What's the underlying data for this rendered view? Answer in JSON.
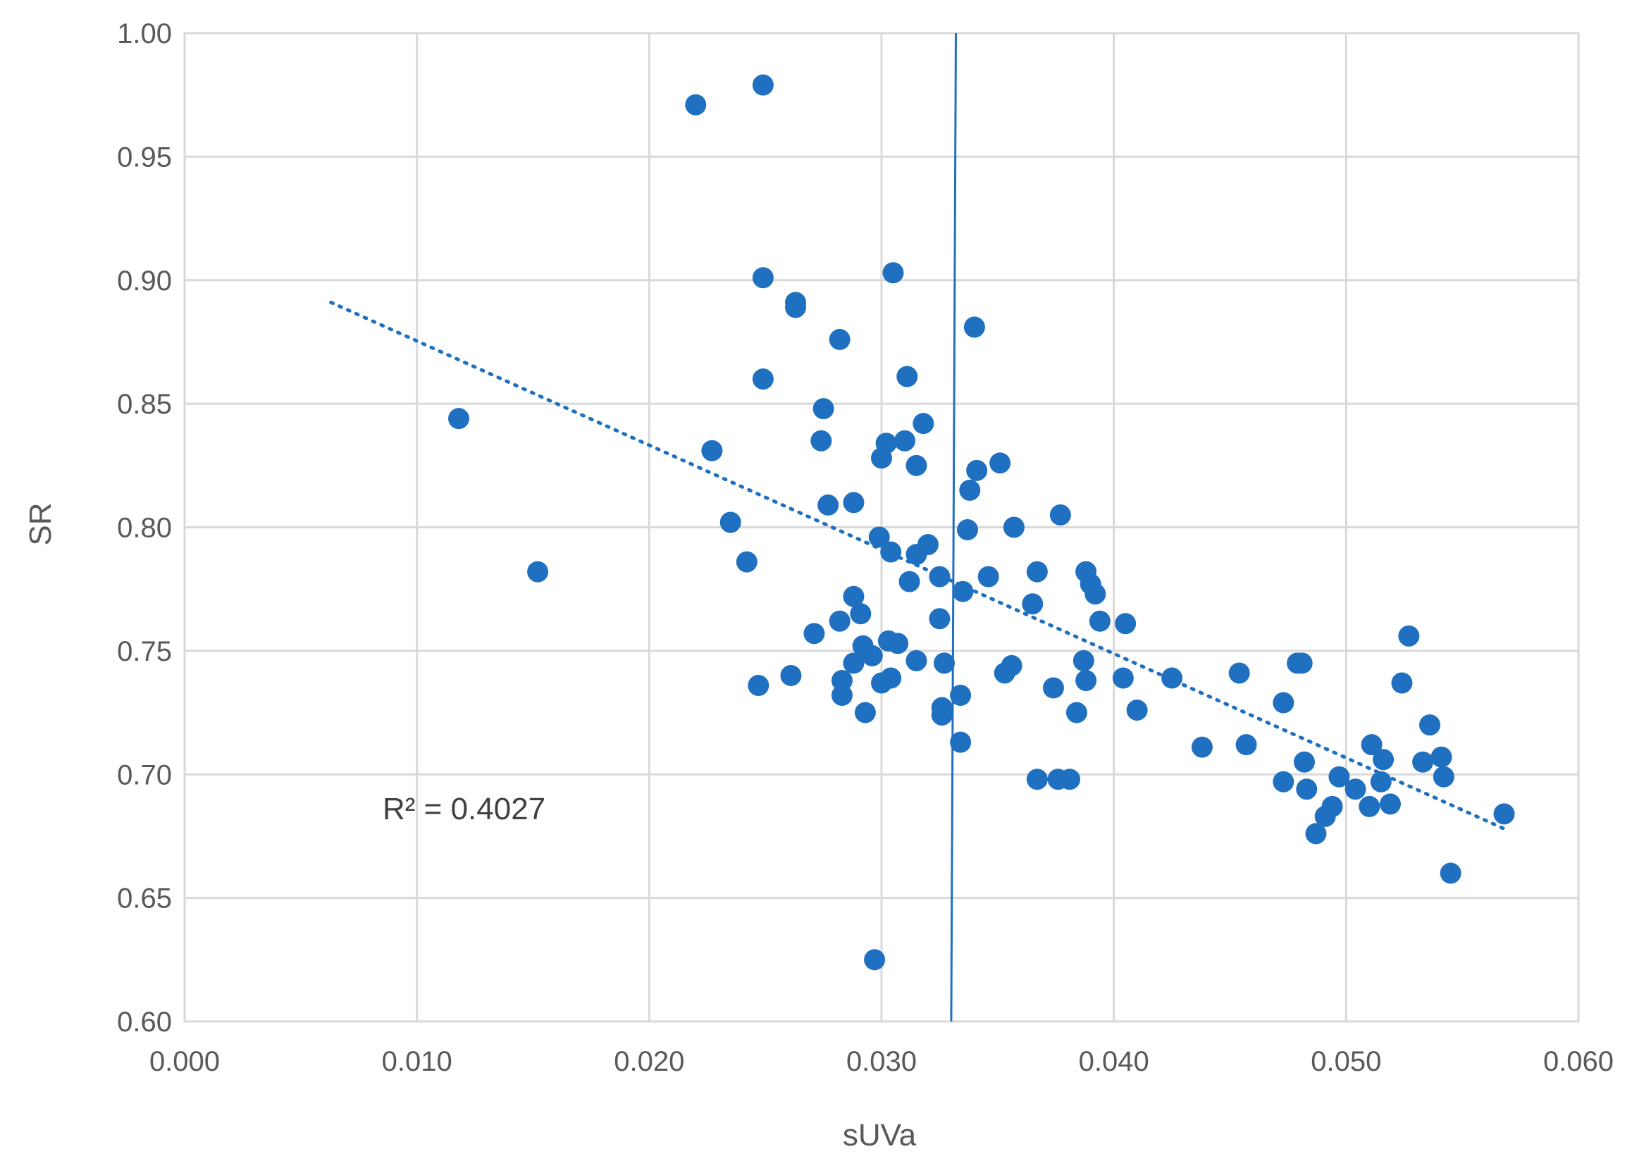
{
  "chart_data": {
    "type": "scatter",
    "xlabel": "sUVa",
    "ylabel": "SR",
    "xlim": [
      0.0,
      0.06
    ],
    "ylim": [
      0.6,
      1.0
    ],
    "x_ticks": [
      "0.000",
      "0.010",
      "0.020",
      "0.030",
      "0.040",
      "0.050",
      "0.060"
    ],
    "y_ticks": [
      "0.60",
      "0.65",
      "0.70",
      "0.75",
      "0.80",
      "0.85",
      "0.90",
      "0.95",
      "1.00"
    ],
    "grid": true,
    "marker_color": "#1f70c1",
    "annotation": "R² = 0.4027",
    "trendline": {
      "style": "dotted",
      "x": [
        0.0063,
        0.0568
      ],
      "y": [
        0.891,
        0.678
      ]
    },
    "reference_line": {
      "x_top": 0.0332,
      "x_bottom": 0.033
    },
    "points": [
      [
        0.0118,
        0.844
      ],
      [
        0.0152,
        0.782
      ],
      [
        0.022,
        0.971
      ],
      [
        0.0249,
        0.979
      ],
      [
        0.0227,
        0.831
      ],
      [
        0.0235,
        0.802
      ],
      [
        0.0242,
        0.786
      ],
      [
        0.0247,
        0.736
      ],
      [
        0.0249,
        0.901
      ],
      [
        0.0249,
        0.86
      ],
      [
        0.0263,
        0.891
      ],
      [
        0.0263,
        0.889
      ],
      [
        0.0261,
        0.74
      ],
      [
        0.0271,
        0.757
      ],
      [
        0.0274,
        0.835
      ],
      [
        0.0275,
        0.848
      ],
      [
        0.0277,
        0.809
      ],
      [
        0.0282,
        0.876
      ],
      [
        0.0282,
        0.762
      ],
      [
        0.0283,
        0.738
      ],
      [
        0.0283,
        0.732
      ],
      [
        0.0288,
        0.81
      ],
      [
        0.0288,
        0.772
      ],
      [
        0.0288,
        0.745
      ],
      [
        0.0291,
        0.765
      ],
      [
        0.0292,
        0.752
      ],
      [
        0.0293,
        0.725
      ],
      [
        0.0296,
        0.748
      ],
      [
        0.0297,
        0.625
      ],
      [
        0.0299,
        0.796
      ],
      [
        0.03,
        0.828
      ],
      [
        0.03,
        0.737
      ],
      [
        0.0302,
        0.834
      ],
      [
        0.0303,
        0.754
      ],
      [
        0.0304,
        0.79
      ],
      [
        0.0304,
        0.739
      ],
      [
        0.0305,
        0.903
      ],
      [
        0.0307,
        0.753
      ],
      [
        0.031,
        0.835
      ],
      [
        0.0311,
        0.861
      ],
      [
        0.0312,
        0.778
      ],
      [
        0.0315,
        0.825
      ],
      [
        0.0315,
        0.789
      ],
      [
        0.0315,
        0.746
      ],
      [
        0.0318,
        0.842
      ],
      [
        0.032,
        0.793
      ],
      [
        0.0325,
        0.78
      ],
      [
        0.0325,
        0.763
      ],
      [
        0.0326,
        0.727
      ],
      [
        0.0326,
        0.724
      ],
      [
        0.0327,
        0.745
      ],
      [
        0.0334,
        0.732
      ],
      [
        0.0334,
        0.713
      ],
      [
        0.0335,
        0.774
      ],
      [
        0.0337,
        0.799
      ],
      [
        0.0338,
        0.815
      ],
      [
        0.034,
        0.881
      ],
      [
        0.0341,
        0.823
      ],
      [
        0.0346,
        0.78
      ],
      [
        0.0351,
        0.826
      ],
      [
        0.0353,
        0.741
      ],
      [
        0.0356,
        0.744
      ],
      [
        0.0357,
        0.8
      ],
      [
        0.0365,
        0.769
      ],
      [
        0.0367,
        0.782
      ],
      [
        0.0367,
        0.698
      ],
      [
        0.0374,
        0.735
      ],
      [
        0.0376,
        0.698
      ],
      [
        0.0377,
        0.805
      ],
      [
        0.0381,
        0.698
      ],
      [
        0.0384,
        0.725
      ],
      [
        0.0387,
        0.746
      ],
      [
        0.0388,
        0.782
      ],
      [
        0.0388,
        0.738
      ],
      [
        0.039,
        0.777
      ],
      [
        0.0392,
        0.773
      ],
      [
        0.0394,
        0.762
      ],
      [
        0.0404,
        0.739
      ],
      [
        0.0405,
        0.761
      ],
      [
        0.041,
        0.726
      ],
      [
        0.0425,
        0.739
      ],
      [
        0.0438,
        0.711
      ],
      [
        0.0454,
        0.741
      ],
      [
        0.0457,
        0.712
      ],
      [
        0.0473,
        0.729
      ],
      [
        0.0473,
        0.697
      ],
      [
        0.0479,
        0.745
      ],
      [
        0.0481,
        0.745
      ],
      [
        0.0482,
        0.705
      ],
      [
        0.0483,
        0.694
      ],
      [
        0.0487,
        0.676
      ],
      [
        0.0491,
        0.683
      ],
      [
        0.0494,
        0.687
      ],
      [
        0.0497,
        0.699
      ],
      [
        0.0504,
        0.694
      ],
      [
        0.051,
        0.687
      ],
      [
        0.0511,
        0.712
      ],
      [
        0.0515,
        0.697
      ],
      [
        0.0516,
        0.706
      ],
      [
        0.0519,
        0.688
      ],
      [
        0.0524,
        0.737
      ],
      [
        0.0527,
        0.756
      ],
      [
        0.0533,
        0.705
      ],
      [
        0.0536,
        0.72
      ],
      [
        0.0541,
        0.707
      ],
      [
        0.0542,
        0.699
      ],
      [
        0.0545,
        0.66
      ],
      [
        0.0568,
        0.684
      ]
    ]
  }
}
